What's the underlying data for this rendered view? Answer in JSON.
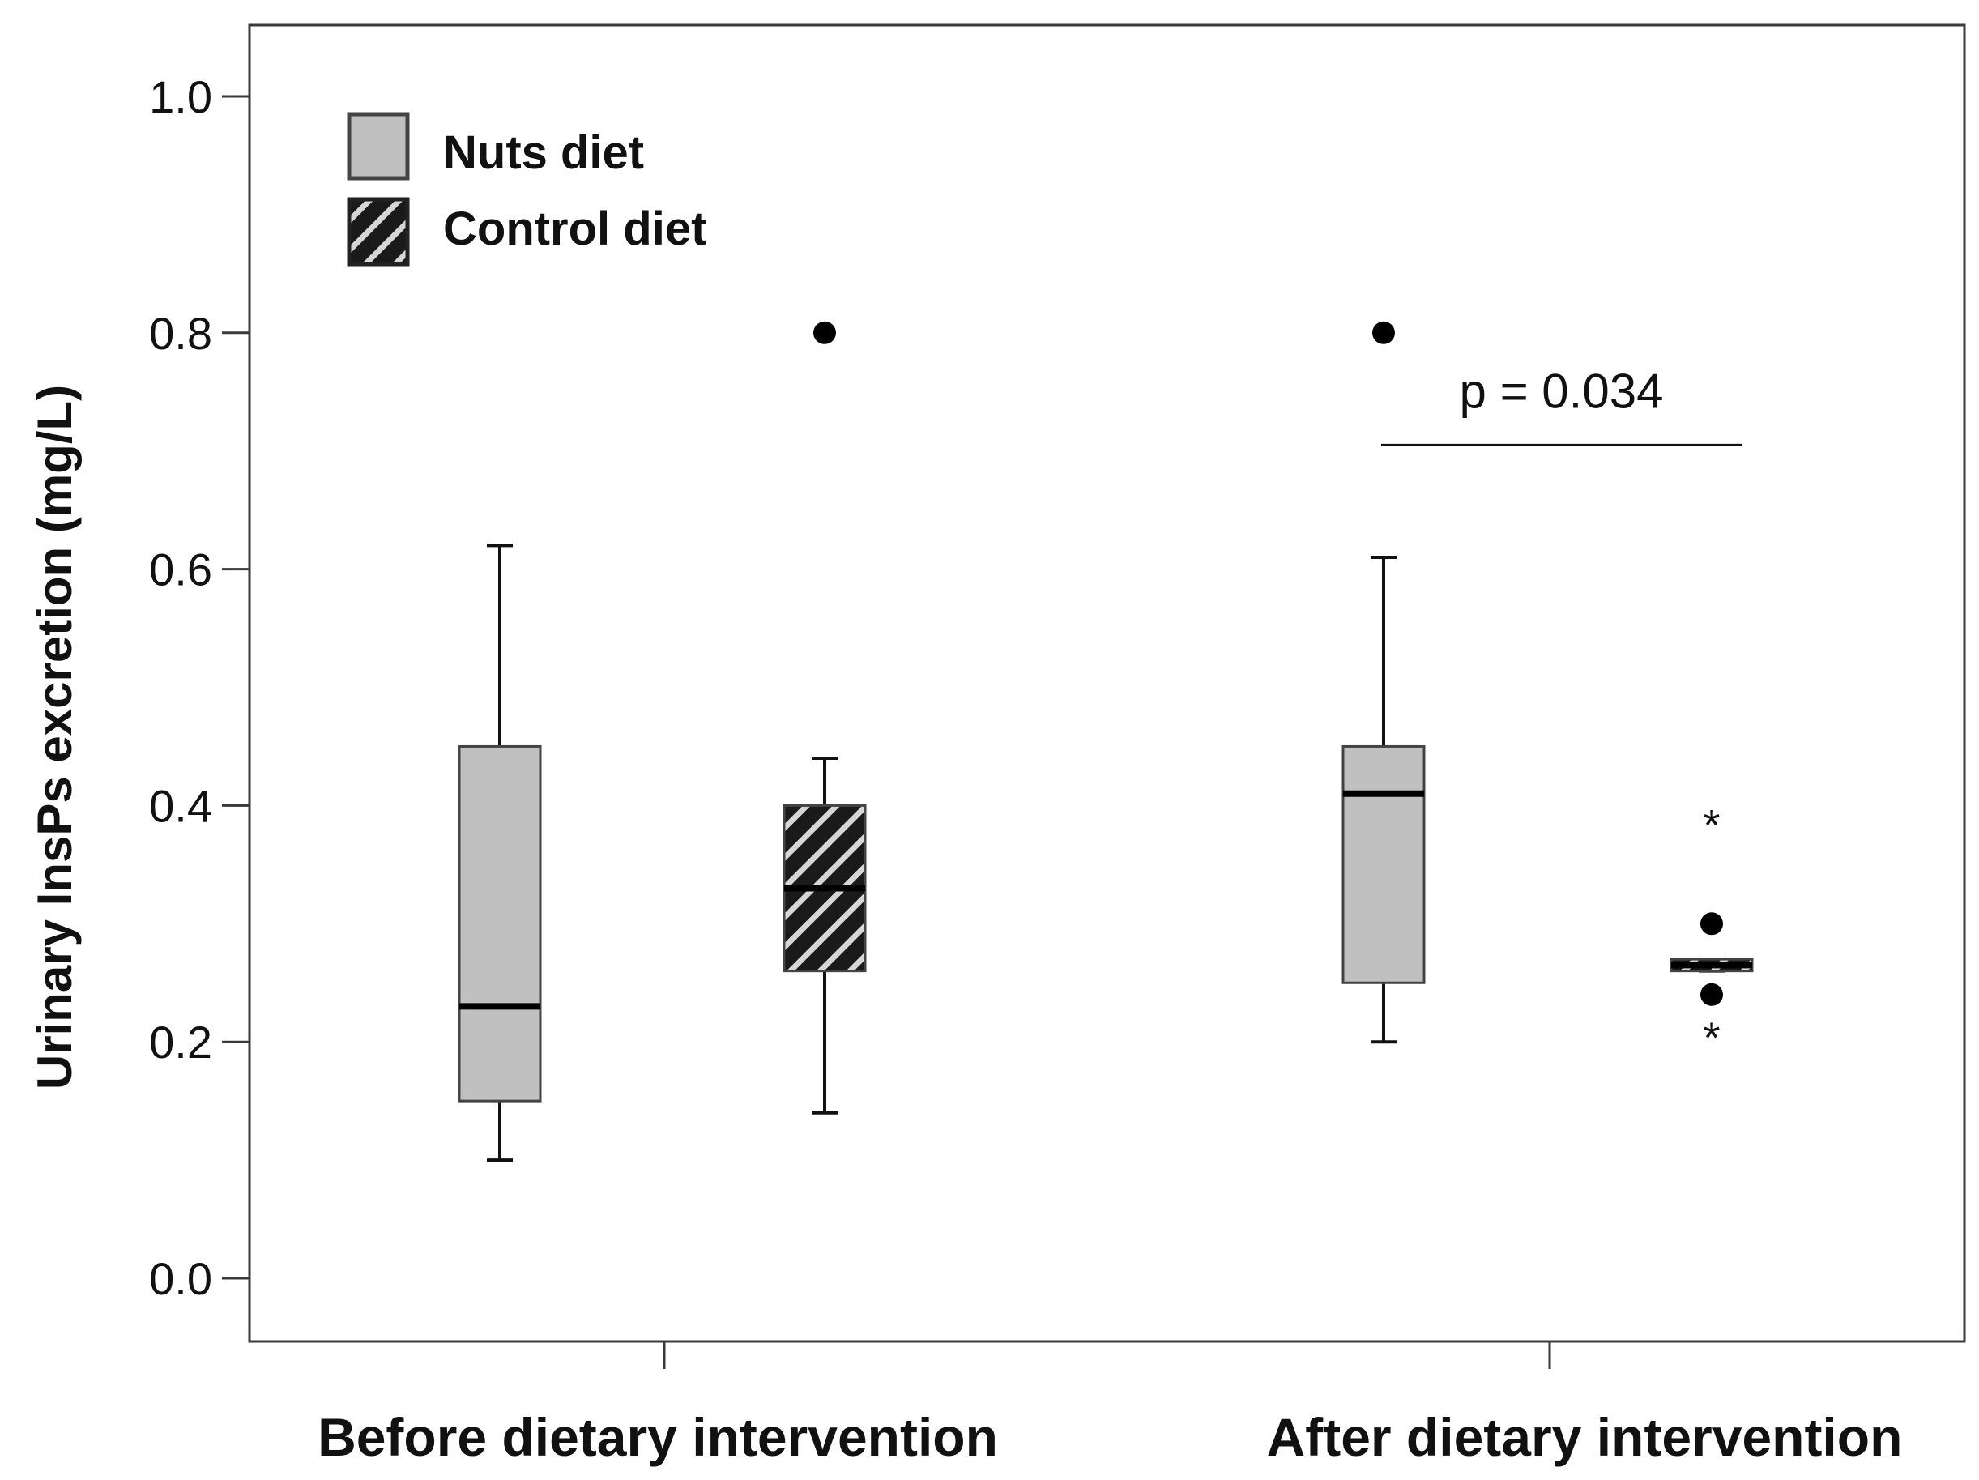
{
  "chart_data": {
    "type": "box",
    "title": "",
    "ylabel": "Urinary InsPs excretion (mg/L)",
    "xlabel": "",
    "ylim": [
      -0.06,
      1.06
    ],
    "yticks": [
      "0.0",
      "0.2",
      "0.4",
      "0.6",
      "0.8",
      "1.0"
    ],
    "ytick_values": [
      0.0,
      0.2,
      0.4,
      0.6,
      0.8,
      1.0
    ],
    "categories": [
      "Before dietary intervention",
      "After dietary intervention"
    ],
    "legend": {
      "position": "top-left",
      "entries": [
        {
          "name": "Nuts diet",
          "style": "solid-gray"
        },
        {
          "name": "Control diet",
          "style": "hatched"
        }
      ]
    },
    "series": [
      {
        "name": "Nuts diet",
        "boxes": [
          {
            "category": "Before dietary intervention",
            "whisker_low": 0.1,
            "q1": 0.15,
            "median": 0.23,
            "q3": 0.45,
            "whisker_high": 0.62,
            "outliers": [],
            "extremes": []
          },
          {
            "category": "After dietary intervention",
            "whisker_low": 0.2,
            "q1": 0.25,
            "median": 0.41,
            "q3": 0.45,
            "whisker_high": 0.61,
            "outliers": [
              0.8
            ],
            "extremes": []
          }
        ]
      },
      {
        "name": "Control diet",
        "boxes": [
          {
            "category": "Before dietary intervention",
            "whisker_low": 0.14,
            "q1": 0.26,
            "median": 0.33,
            "q3": 0.4,
            "whisker_high": 0.44,
            "outliers": [
              0.8
            ],
            "extremes": []
          },
          {
            "category": "After dietary intervention",
            "whisker_low": 0.26,
            "q1": 0.26,
            "median": 0.265,
            "q3": 0.27,
            "whisker_high": 0.27,
            "outliers": [
              0.3,
              0.24
            ],
            "extremes": [
              0.39,
              0.21
            ]
          }
        ]
      }
    ],
    "annotations": [
      {
        "text": "p = 0.034",
        "from_box": "Nuts diet / After dietary intervention",
        "to_box": "Control diet / After dietary intervention",
        "y": 0.705
      }
    ],
    "colors": {
      "box_fill": "#c0c0c0",
      "hatch": "#1a1a1a",
      "line": "#111111",
      "frame": "#3a3a3a"
    }
  }
}
